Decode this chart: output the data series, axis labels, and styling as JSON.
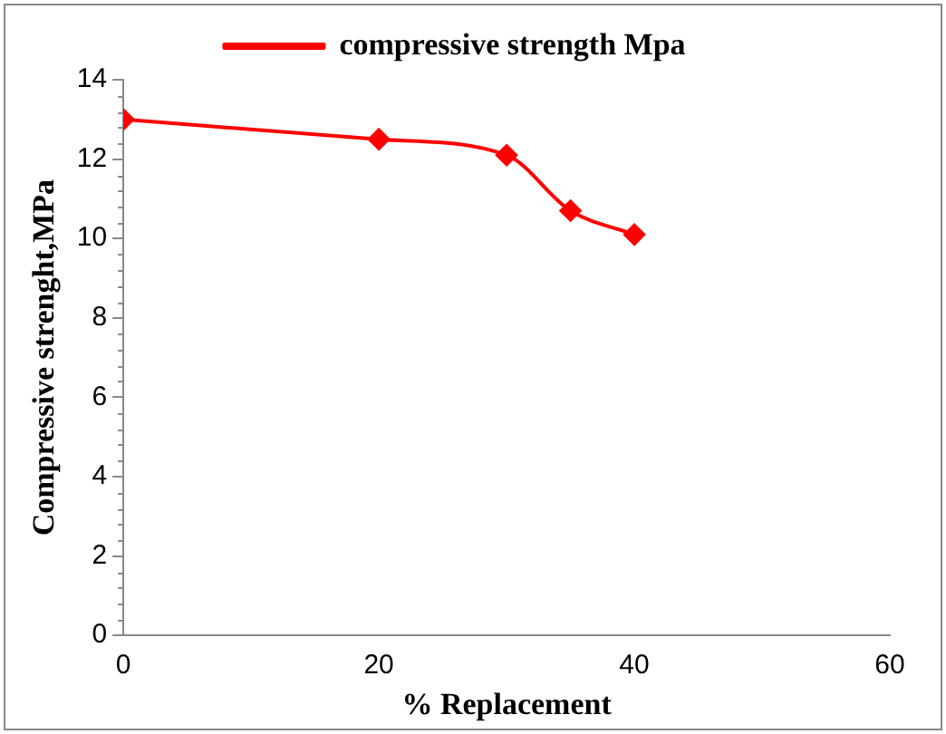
{
  "chart_data": {
    "type": "line",
    "xlabel": "% Replacement",
    "ylabel": "Compressive strenght,MPa",
    "x": [
      0,
      20,
      30,
      35,
      40
    ],
    "series": [
      {
        "name": "compressive strength Mpa",
        "color": "#ff0000",
        "values": [
          13,
          12.5,
          12.1,
          10.7,
          10.1
        ]
      }
    ],
    "xlim": [
      0,
      60
    ],
    "xticks": [
      0,
      20,
      40,
      60
    ],
    "ylim": [
      0,
      14
    ],
    "yticks": [
      0,
      2,
      4,
      6,
      8,
      10,
      12,
      14
    ],
    "grid": false,
    "legend": "top",
    "marker": "diamond",
    "line_style": "solid"
  }
}
